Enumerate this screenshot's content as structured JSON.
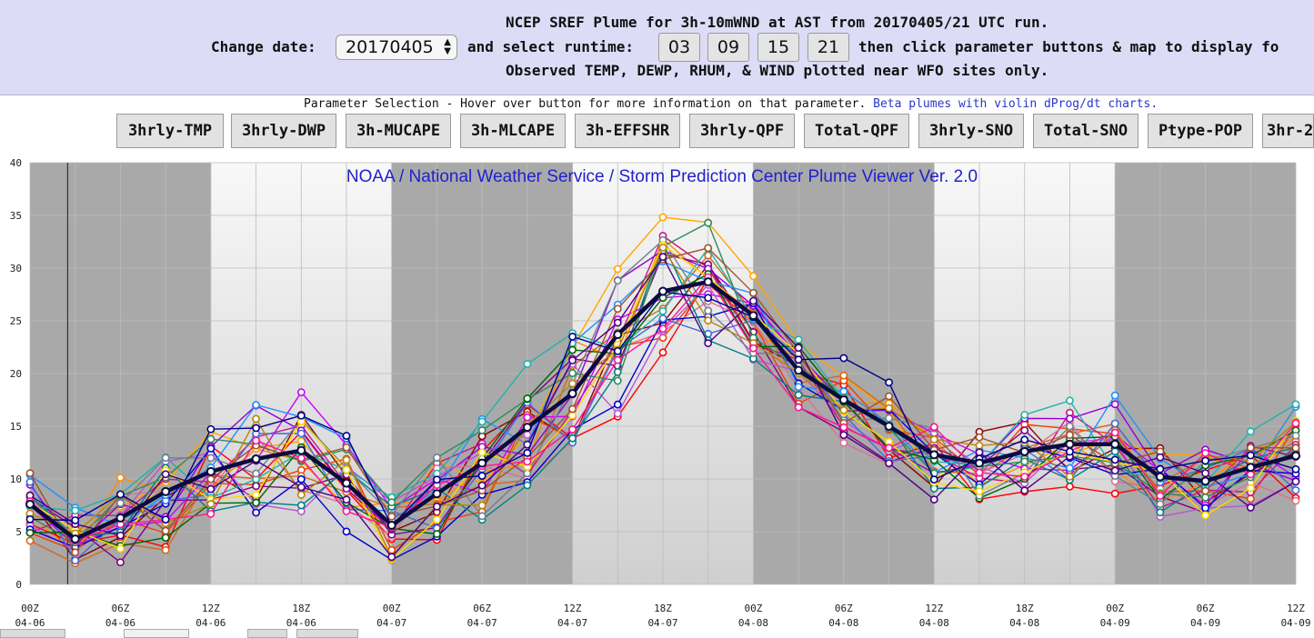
{
  "header": {
    "line1": "NCEP SREF Plume for 3h-10mWND at AST from 20170405/21 UTC run.",
    "change_date_label": "Change date:",
    "date_value": "20170405",
    "select_runtime_label": "and select runtime:",
    "runtimes": [
      "03",
      "09",
      "15",
      "21"
    ],
    "line2_tail": "then click parameter buttons & map to display fo",
    "line3": "Observed TEMP, DEWP, RHUM, & WIND plotted near WFO sites only."
  },
  "params": {
    "note": "Parameter Selection - Hover over button for more information on that parameter.",
    "beta_link": "Beta plumes with violin dProg/dt charts.",
    "buttons": [
      "3hrly-TMP",
      "3hrly-DWP",
      "3h-MUCAPE",
      "3h-MLCAPE",
      "3h-EFFSHR",
      "3hrly-QPF",
      "Total-QPF",
      "3hrly-SNO",
      "Total-SNO",
      "Ptype-POP",
      "3hr-2"
    ]
  },
  "chart_data": {
    "type": "line",
    "title": "NOAA / National Weather Service / Storm Prediction Center Plume Viewer Ver. 2.0",
    "ylim": [
      0,
      40
    ],
    "yticks": [
      0,
      5,
      10,
      15,
      20,
      25,
      30,
      35,
      40
    ],
    "x_ticks": [
      {
        "hour": 0,
        "l1": "00Z",
        "l2": "04-06"
      },
      {
        "hour": 6,
        "l1": "06Z",
        "l2": "04-06"
      },
      {
        "hour": 12,
        "l1": "12Z",
        "l2": "04-06"
      },
      {
        "hour": 18,
        "l1": "18Z",
        "l2": "04-06"
      },
      {
        "hour": 24,
        "l1": "00Z",
        "l2": "04-07"
      },
      {
        "hour": 30,
        "l1": "06Z",
        "l2": "04-07"
      },
      {
        "hour": 36,
        "l1": "12Z",
        "l2": "04-07"
      },
      {
        "hour": 42,
        "l1": "18Z",
        "l2": "04-07"
      },
      {
        "hour": 48,
        "l1": "00Z",
        "l2": "04-08"
      },
      {
        "hour": 54,
        "l1": "06Z",
        "l2": "04-08"
      },
      {
        "hour": 60,
        "l1": "12Z",
        "l2": "04-08"
      },
      {
        "hour": 66,
        "l1": "18Z",
        "l2": "04-08"
      },
      {
        "hour": 72,
        "l1": "00Z",
        "l2": "04-09"
      },
      {
        "hour": 78,
        "l1": "06Z",
        "l2": "04-09"
      },
      {
        "hour": 84,
        "l1": "12Z",
        "l2": "04-09"
      }
    ],
    "x_hours": [
      0,
      3,
      6,
      9,
      12,
      15,
      18,
      21,
      24,
      27,
      30,
      33,
      36,
      39,
      42,
      45,
      48,
      51,
      54,
      57,
      60,
      63,
      66,
      69,
      72,
      75,
      78,
      81,
      84
    ],
    "night_bands": [
      [
        0,
        12
      ],
      [
        24,
        36
      ],
      [
        48,
        60
      ],
      [
        72,
        84
      ]
    ],
    "current_time_hour": 2.5,
    "colors": {
      "night_band": "#a9a9a9",
      "day_top": "#f8f8f8",
      "day_bottom": "#cfcfcf",
      "title_text": "#1f1fd0",
      "mean_line": "#0b0b40"
    },
    "series_colors": [
      "#8b0000",
      "#ff8c00",
      "#ffa500",
      "#ff0000",
      "#ee4000",
      "#d2691e",
      "#c71585",
      "#db7093",
      "#800080",
      "#9400d3",
      "#cc00ff",
      "#ba55d3",
      "#0000cd",
      "#4169e1",
      "#1e90ff",
      "#008080",
      "#20b2aa",
      "#2e8b57",
      "#006400",
      "#708090",
      "#ffd700",
      "#b8860b",
      "#a0522d",
      "#4b0082",
      "#ff1493",
      "#00008b"
    ],
    "mean": [
      7.6,
      4.3,
      6.3,
      8.8,
      10.7,
      11.9,
      12.7,
      9.6,
      5.6,
      8.6,
      11.5,
      14.9,
      18.1,
      23.7,
      27.8,
      28.7,
      25.5,
      20.3,
      17.5,
      15.0,
      12.3,
      11.5,
      12.6,
      13.3,
      13.3,
      10.2,
      9.8,
      11.1,
      12.2
    ],
    "spread": [
      3.0,
      2.5,
      3.5,
      4.5,
      3.8,
      4.5,
      4.5,
      4.0,
      3.2,
      4.0,
      4.6,
      4.8,
      5.2,
      6.0,
      5.6,
      4.8,
      3.6,
      3.2,
      3.6,
      3.4,
      3.4,
      3.4,
      3.0,
      3.4,
      3.6,
      3.0,
      3.2,
      3.5,
      3.8
    ]
  }
}
